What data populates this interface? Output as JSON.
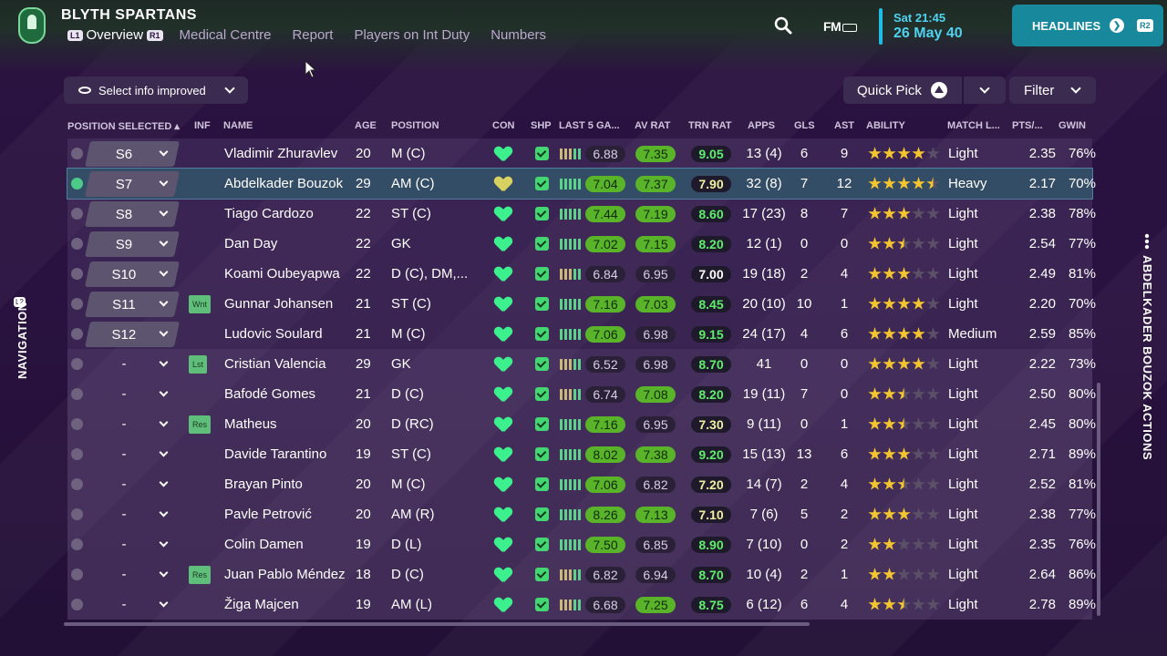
{
  "header": {
    "club": "BLYTH SPARTANS",
    "l1": "L1",
    "r1": "R1",
    "tabs": [
      "Overview",
      "Medical Centre",
      "Report",
      "Players on Int Duty",
      "Numbers"
    ],
    "fm": "FM",
    "time": "Sat 21:45",
    "date": "26 May 40",
    "headlines": "HEADLINES",
    "r2": "R2"
  },
  "toolbar": {
    "info_select": "Select info improved",
    "quick_pick": "Quick Pick",
    "filter": "Filter"
  },
  "columns": [
    "POSITION SELECTED",
    "INF",
    "NAME",
    "AGE",
    "POSITION",
    "CON",
    "SHP",
    "LAST 5 GA...",
    "AV RAT",
    "TRN RAT",
    "APPS",
    "GLS",
    "AST",
    "ABILITY",
    "MATCH L...",
    "PTS/...",
    "GWIN"
  ],
  "players": [
    {
      "sel": "S6",
      "checked": false,
      "inf": "",
      "name": "Vladimir Zhuravlev",
      "age": "20",
      "position": "M (C)",
      "con": "green",
      "last5": "6.88",
      "last5_style": "dark",
      "avr": "7.35",
      "avr_style": "green",
      "trn": "9.05",
      "trn_style": "g",
      "apps": "13 (4)",
      "gls": "6",
      "ast": "9",
      "stars": 4,
      "match": "Light",
      "pts": "2.35",
      "gwin": "76%"
    },
    {
      "sel": "S7",
      "checked": true,
      "inf": "",
      "name": "Abdelkader Bouzok",
      "age": "29",
      "position": "AM (C)",
      "con": "yellow",
      "last5": "7.04",
      "last5_style": "green",
      "avr": "7.37",
      "avr_style": "green",
      "trn": "7.90",
      "trn_style": "y",
      "apps": "32 (8)",
      "gls": "7",
      "ast": "12",
      "stars": 4.5,
      "match": "Heavy",
      "pts": "2.17",
      "gwin": "70%"
    },
    {
      "sel": "S8",
      "checked": false,
      "inf": "",
      "name": "Tiago Cardozo",
      "age": "22",
      "position": "ST (C)",
      "con": "green",
      "last5": "7.44",
      "last5_style": "green",
      "avr": "7.19",
      "avr_style": "green",
      "trn": "8.60",
      "trn_style": "g",
      "apps": "17 (23)",
      "gls": "8",
      "ast": "7",
      "stars": 3,
      "match": "Light",
      "pts": "2.38",
      "gwin": "78%"
    },
    {
      "sel": "S9",
      "checked": false,
      "inf": "",
      "name": "Dan Day",
      "age": "22",
      "position": "GK",
      "con": "green",
      "last5": "7.02",
      "last5_style": "green",
      "avr": "7.15",
      "avr_style": "green",
      "trn": "8.20",
      "trn_style": "g",
      "apps": "12 (1)",
      "gls": "0",
      "ast": "0",
      "stars": 2.5,
      "match": "Light",
      "pts": "2.54",
      "gwin": "77%"
    },
    {
      "sel": "S10",
      "checked": false,
      "inf": "",
      "name": "Koami Oubeyapwa",
      "age": "22",
      "position": "D (C), DM,...",
      "con": "green",
      "last5": "6.84",
      "last5_style": "dark",
      "avr": "6.95",
      "avr_style": "dark",
      "trn": "7.00",
      "trn_style": "w",
      "apps": "19 (18)",
      "gls": "2",
      "ast": "4",
      "stars": 3,
      "match": "Light",
      "pts": "2.49",
      "gwin": "81%"
    },
    {
      "sel": "S11",
      "checked": false,
      "inf": "Wnt",
      "name": "Gunnar Johansen",
      "age": "21",
      "position": "ST (C)",
      "con": "green",
      "last5": "7.16",
      "last5_style": "green",
      "avr": "7.03",
      "avr_style": "green",
      "trn": "8.45",
      "trn_style": "g",
      "apps": "20 (10)",
      "gls": "10",
      "ast": "1",
      "stars": 4,
      "match": "Light",
      "pts": "2.20",
      "gwin": "70%"
    },
    {
      "sel": "S12",
      "checked": false,
      "inf": "",
      "name": "Ludovic Soulard",
      "age": "21",
      "position": "M (C)",
      "con": "green",
      "last5": "7.06",
      "last5_style": "green",
      "avr": "6.98",
      "avr_style": "dark",
      "trn": "9.15",
      "trn_style": "g",
      "apps": "24 (17)",
      "gls": "4",
      "ast": "6",
      "stars": 4,
      "match": "Medium",
      "pts": "2.59",
      "gwin": "85%"
    },
    {
      "sel": "-",
      "checked": false,
      "inf": "Lst",
      "name": "Cristian Valencia",
      "age": "29",
      "position": "GK",
      "con": "green",
      "last5": "6.52",
      "last5_style": "dark",
      "avr": "6.98",
      "avr_style": "dark",
      "trn": "8.70",
      "trn_style": "g",
      "apps": "41",
      "gls": "0",
      "ast": "0",
      "stars": 4,
      "match": "Light",
      "pts": "2.22",
      "gwin": "73%"
    },
    {
      "sel": "-",
      "checked": false,
      "inf": "",
      "name": "Bafodé Gomes",
      "age": "21",
      "position": "D (C)",
      "con": "green",
      "last5": "6.74",
      "last5_style": "dark",
      "avr": "7.08",
      "avr_style": "green",
      "trn": "8.20",
      "trn_style": "g",
      "apps": "19 (11)",
      "gls": "7",
      "ast": "0",
      "stars": 2.5,
      "match": "Light",
      "pts": "2.50",
      "gwin": "80%"
    },
    {
      "sel": "-",
      "checked": false,
      "inf": "Res",
      "name": "Matheus",
      "age": "20",
      "position": "D (RC)",
      "con": "green",
      "last5": "7.16",
      "last5_style": "green",
      "avr": "6.95",
      "avr_style": "dark",
      "trn": "7.30",
      "trn_style": "y",
      "apps": "9 (11)",
      "gls": "0",
      "ast": "1",
      "stars": 2.5,
      "match": "Light",
      "pts": "2.45",
      "gwin": "80%"
    },
    {
      "sel": "-",
      "checked": false,
      "inf": "",
      "name": "Davide Tarantino",
      "age": "19",
      "position": "ST (C)",
      "con": "green",
      "last5": "8.02",
      "last5_style": "green",
      "avr": "7.38",
      "avr_style": "green",
      "trn": "9.20",
      "trn_style": "g",
      "apps": "15 (13)",
      "gls": "13",
      "ast": "6",
      "stars": 3,
      "match": "Light",
      "pts": "2.71",
      "gwin": "89%"
    },
    {
      "sel": "-",
      "checked": false,
      "inf": "",
      "name": "Brayan Pinto",
      "age": "20",
      "position": "M (C)",
      "con": "green",
      "last5": "7.06",
      "last5_style": "green",
      "avr": "6.82",
      "avr_style": "dark",
      "trn": "7.20",
      "trn_style": "y",
      "apps": "14 (7)",
      "gls": "2",
      "ast": "4",
      "stars": 2.5,
      "match": "Light",
      "pts": "2.52",
      "gwin": "81%"
    },
    {
      "sel": "-",
      "checked": false,
      "inf": "",
      "name": "Pavle Petrović",
      "age": "20",
      "position": "AM (R)",
      "con": "green",
      "last5": "8.26",
      "last5_style": "green",
      "avr": "7.13",
      "avr_style": "green",
      "trn": "7.10",
      "trn_style": "y",
      "apps": "7 (6)",
      "gls": "5",
      "ast": "2",
      "stars": 3,
      "match": "Light",
      "pts": "2.38",
      "gwin": "77%"
    },
    {
      "sel": "-",
      "checked": false,
      "inf": "",
      "name": "Colin Damen",
      "age": "19",
      "position": "D (L)",
      "con": "green",
      "last5": "7.50",
      "last5_style": "green",
      "avr": "6.85",
      "avr_style": "dark",
      "trn": "8.90",
      "trn_style": "g",
      "apps": "7 (10)",
      "gls": "0",
      "ast": "2",
      "stars": 2,
      "match": "Light",
      "pts": "2.35",
      "gwin": "76%"
    },
    {
      "sel": "-",
      "checked": false,
      "inf": "Res",
      "name": "Juan Pablo Méndez",
      "age": "18",
      "position": "D (C)",
      "con": "green",
      "last5": "6.82",
      "last5_style": "dark",
      "avr": "6.94",
      "avr_style": "dark",
      "trn": "8.70",
      "trn_style": "g",
      "apps": "10 (4)",
      "gls": "2",
      "ast": "1",
      "stars": 2,
      "match": "Light",
      "pts": "2.64",
      "gwin": "86%"
    },
    {
      "sel": "-",
      "checked": false,
      "inf": "",
      "name": "Žiga Majcen",
      "age": "19",
      "position": "AM (L)",
      "con": "green",
      "last5": "6.68",
      "last5_style": "dark",
      "avr": "7.25",
      "avr_style": "green",
      "trn": "8.75",
      "trn_style": "g",
      "apps": "6 (12)",
      "gls": "6",
      "ast": "4",
      "stars": 2.5,
      "match": "Light",
      "pts": "2.78",
      "gwin": "89%"
    }
  ],
  "side": {
    "l2": "L2",
    "navigation": "NAVIGATION",
    "actions": "ABDELKADER BOUZOK ACTIONS"
  },
  "colors": {
    "accent": "#18889d",
    "date": "#4fd2f0",
    "good": "#5ab42a",
    "star": "#f5c530"
  }
}
